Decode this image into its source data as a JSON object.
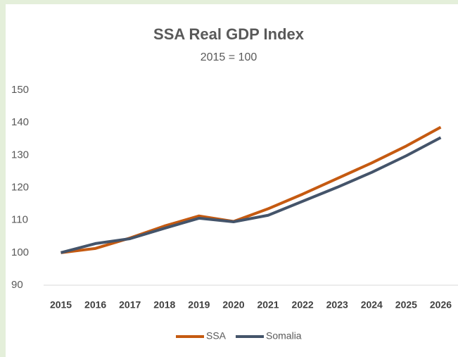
{
  "chart_data": {
    "type": "line",
    "title": "SSA Real GDP Index",
    "subtitle": "2015 = 100",
    "categories": [
      "2015",
      "2016",
      "2017",
      "2018",
      "2019",
      "2020",
      "2021",
      "2022",
      "2023",
      "2024",
      "2025",
      "2026"
    ],
    "series": [
      {
        "name": "SSA",
        "color": "#c55a11",
        "values": [
          100,
          101.3,
          104.5,
          108.2,
          111.3,
          109.6,
          113.5,
          118,
          122.8,
          127.6,
          132.8,
          138.6
        ]
      },
      {
        "name": "Somalia",
        "color": "#44546a",
        "values": [
          100,
          102.8,
          104.3,
          107.5,
          110.6,
          109.5,
          111.5,
          115.8,
          120.1,
          124.7,
          129.8,
          135.4
        ]
      }
    ],
    "ylim": [
      90,
      150
    ],
    "yticks": [
      90,
      100,
      110,
      120,
      130,
      140,
      150
    ],
    "grid": false,
    "legend": "bottom"
  }
}
